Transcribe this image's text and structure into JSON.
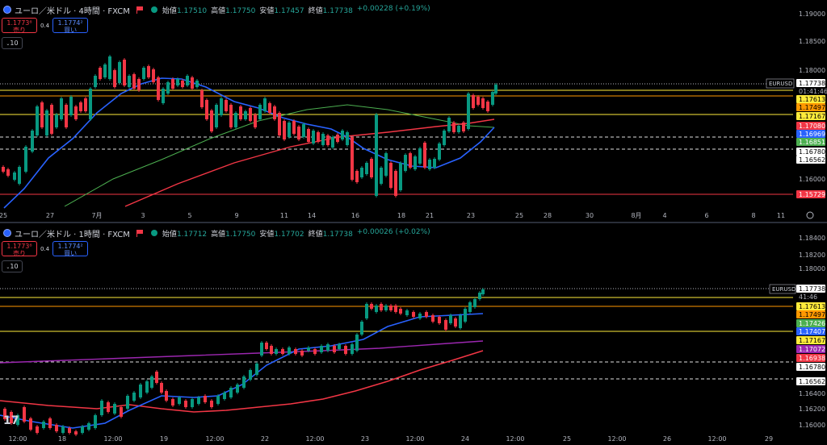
{
  "pane1": {
    "symbol": "ユーロ／米ドル · 4時間 · FXCM",
    "ohlc": {
      "open_label": "始値",
      "open": "1.17510",
      "high_label": "高値",
      "high": "1.17750",
      "low_label": "安値",
      "low": "1.17457",
      "close_label": "終値",
      "close": "1.17738",
      "change": "+0.00228 (+0.19%)"
    },
    "sell_price": "1.1773⁸",
    "sell_label": "売り",
    "spread": "0.4",
    "buy_price": "1.1774²",
    "buy_label": "買い",
    "lot": "10",
    "ticker_label": "EURUSD",
    "countdown": "01:41:46",
    "price_axis": [
      "1.19000",
      "1.18500",
      "1.18000",
      "1.16000"
    ],
    "price_tags": [
      {
        "text": "1.17738",
        "bg": "#ffffff",
        "fg": "#000000"
      },
      {
        "text": "1.17613",
        "bg": "#ffeb3b",
        "fg": "#000000"
      },
      {
        "text": "1.17497",
        "bg": "#ff9800",
        "fg": "#000000"
      },
      {
        "text": "1.17167",
        "bg": "#ffeb3b",
        "fg": "#000000"
      },
      {
        "text": "1.17080",
        "bg": "#f23645",
        "fg": "#ffffff"
      },
      {
        "text": "1.16969",
        "bg": "#2962ff",
        "fg": "#ffffff"
      },
      {
        "text": "1.16851",
        "bg": "#4caf50",
        "fg": "#ffffff"
      },
      {
        "text": "1.16780",
        "bg": "#ffffff",
        "fg": "#000000"
      },
      {
        "text": "1.16562",
        "bg": "#ffffff",
        "fg": "#000000"
      },
      {
        "text": "1.15729",
        "bg": "#f23645",
        "fg": "#ffffff"
      }
    ],
    "time_axis": [
      "25",
      "27",
      "7月",
      "3",
      "5",
      "9",
      "11",
      "14",
      "16",
      "18",
      "21",
      "23",
      "25",
      "28",
      "30",
      "8月",
      "4",
      "6",
      "8",
      "11"
    ]
  },
  "pane2": {
    "symbol": "ユーロ／米ドル · 1時間 · FXCM",
    "ohlc": {
      "open_label": "始値",
      "open": "1.17712",
      "high_label": "高値",
      "high": "1.17750",
      "low_label": "安値",
      "low": "1.17702",
      "close_label": "終値",
      "close": "1.17738",
      "change": "+0.00026 (+0.02%)"
    },
    "sell_price": "1.1773⁸",
    "sell_label": "売り",
    "spread": "0.4",
    "buy_price": "1.1774²",
    "buy_label": "買い",
    "lot": "10",
    "ticker_label": "EURUSD",
    "countdown": "41:46",
    "price_axis": [
      "1.18400",
      "1.18200",
      "1.18000",
      "1.16400",
      "1.16200",
      "1.16000"
    ],
    "price_tags": [
      {
        "text": "1.17738",
        "bg": "#ffffff",
        "fg": "#000000"
      },
      {
        "text": "1.17613",
        "bg": "#ffeb3b",
        "fg": "#000000"
      },
      {
        "text": "1.17497",
        "bg": "#ff9800",
        "fg": "#000000"
      },
      {
        "text": "1.17426",
        "bg": "#4caf50",
        "fg": "#ffffff"
      },
      {
        "text": "1.17407",
        "bg": "#2962ff",
        "fg": "#ffffff"
      },
      {
        "text": "1.17167",
        "bg": "#ffeb3b",
        "fg": "#000000"
      },
      {
        "text": "1.17072",
        "bg": "#9c27b0",
        "fg": "#ffffff"
      },
      {
        "text": "1.16938",
        "bg": "#f23645",
        "fg": "#ffffff"
      },
      {
        "text": "1.16780",
        "bg": "#ffffff",
        "fg": "#000000"
      },
      {
        "text": "1.16562",
        "bg": "#ffffff",
        "fg": "#000000"
      }
    ],
    "time_axis": [
      "12:00",
      "18",
      "12:00",
      "19",
      "12:00",
      "22",
      "12:00",
      "23",
      "12:00",
      "24",
      "12:00",
      "25",
      "12:00",
      "26",
      "12:00",
      "29"
    ],
    "logo": "17"
  }
}
